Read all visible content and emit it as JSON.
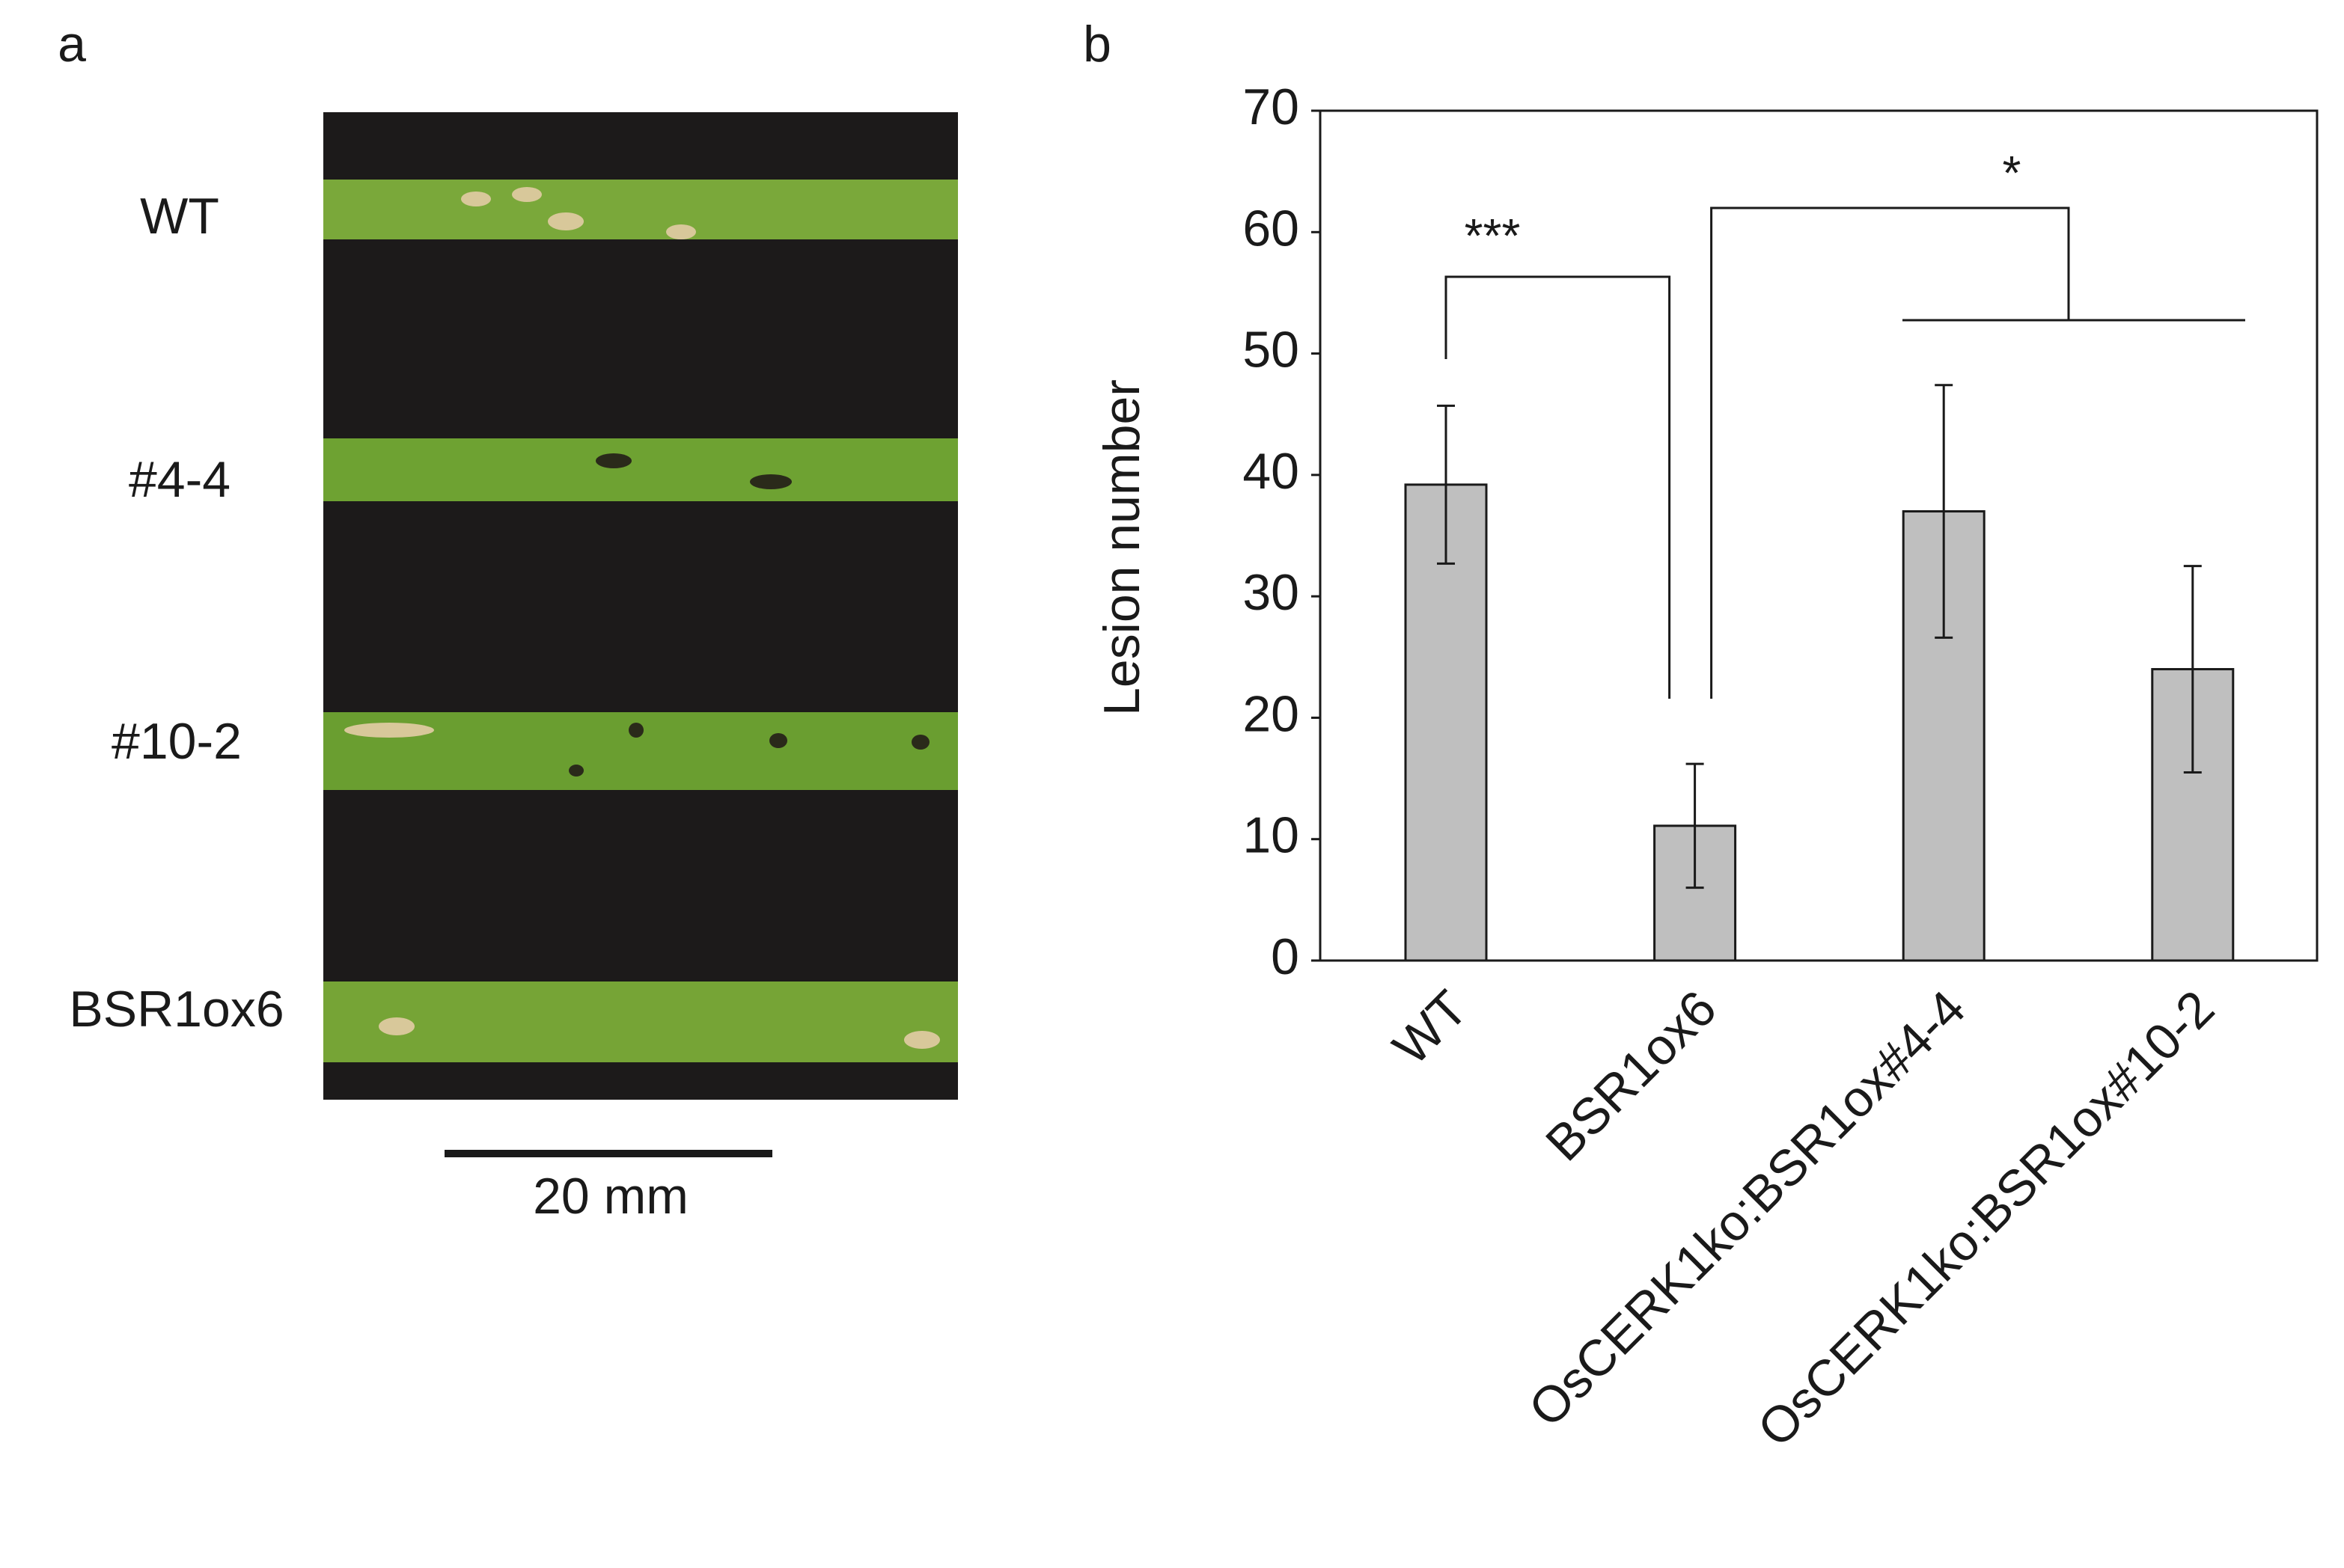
{
  "panel_a": {
    "label": "a",
    "leaf_labels": [
      "WT",
      "#4-4",
      "#10-2",
      "BSR1ox6"
    ],
    "scale_bar": "20 mm"
  },
  "chart_data": {
    "type": "bar",
    "label": "b",
    "ylabel": "Lesion number",
    "categories": [
      "WT",
      "BSR1ox6",
      "OsCERK1ko:BSR1ox#4-4",
      "OsCERK1ko:BSR1ox#10-2"
    ],
    "values": [
      39.2,
      11.1,
      37.0,
      24.0
    ],
    "errors": [
      6.5,
      5.1,
      10.4,
      8.5
    ],
    "color": "#bfbfbf",
    "ylim": [
      0,
      70
    ],
    "yticks": [
      0,
      10,
      20,
      30,
      40,
      50,
      60,
      70
    ],
    "annotations": [
      "***",
      "*"
    ]
  }
}
